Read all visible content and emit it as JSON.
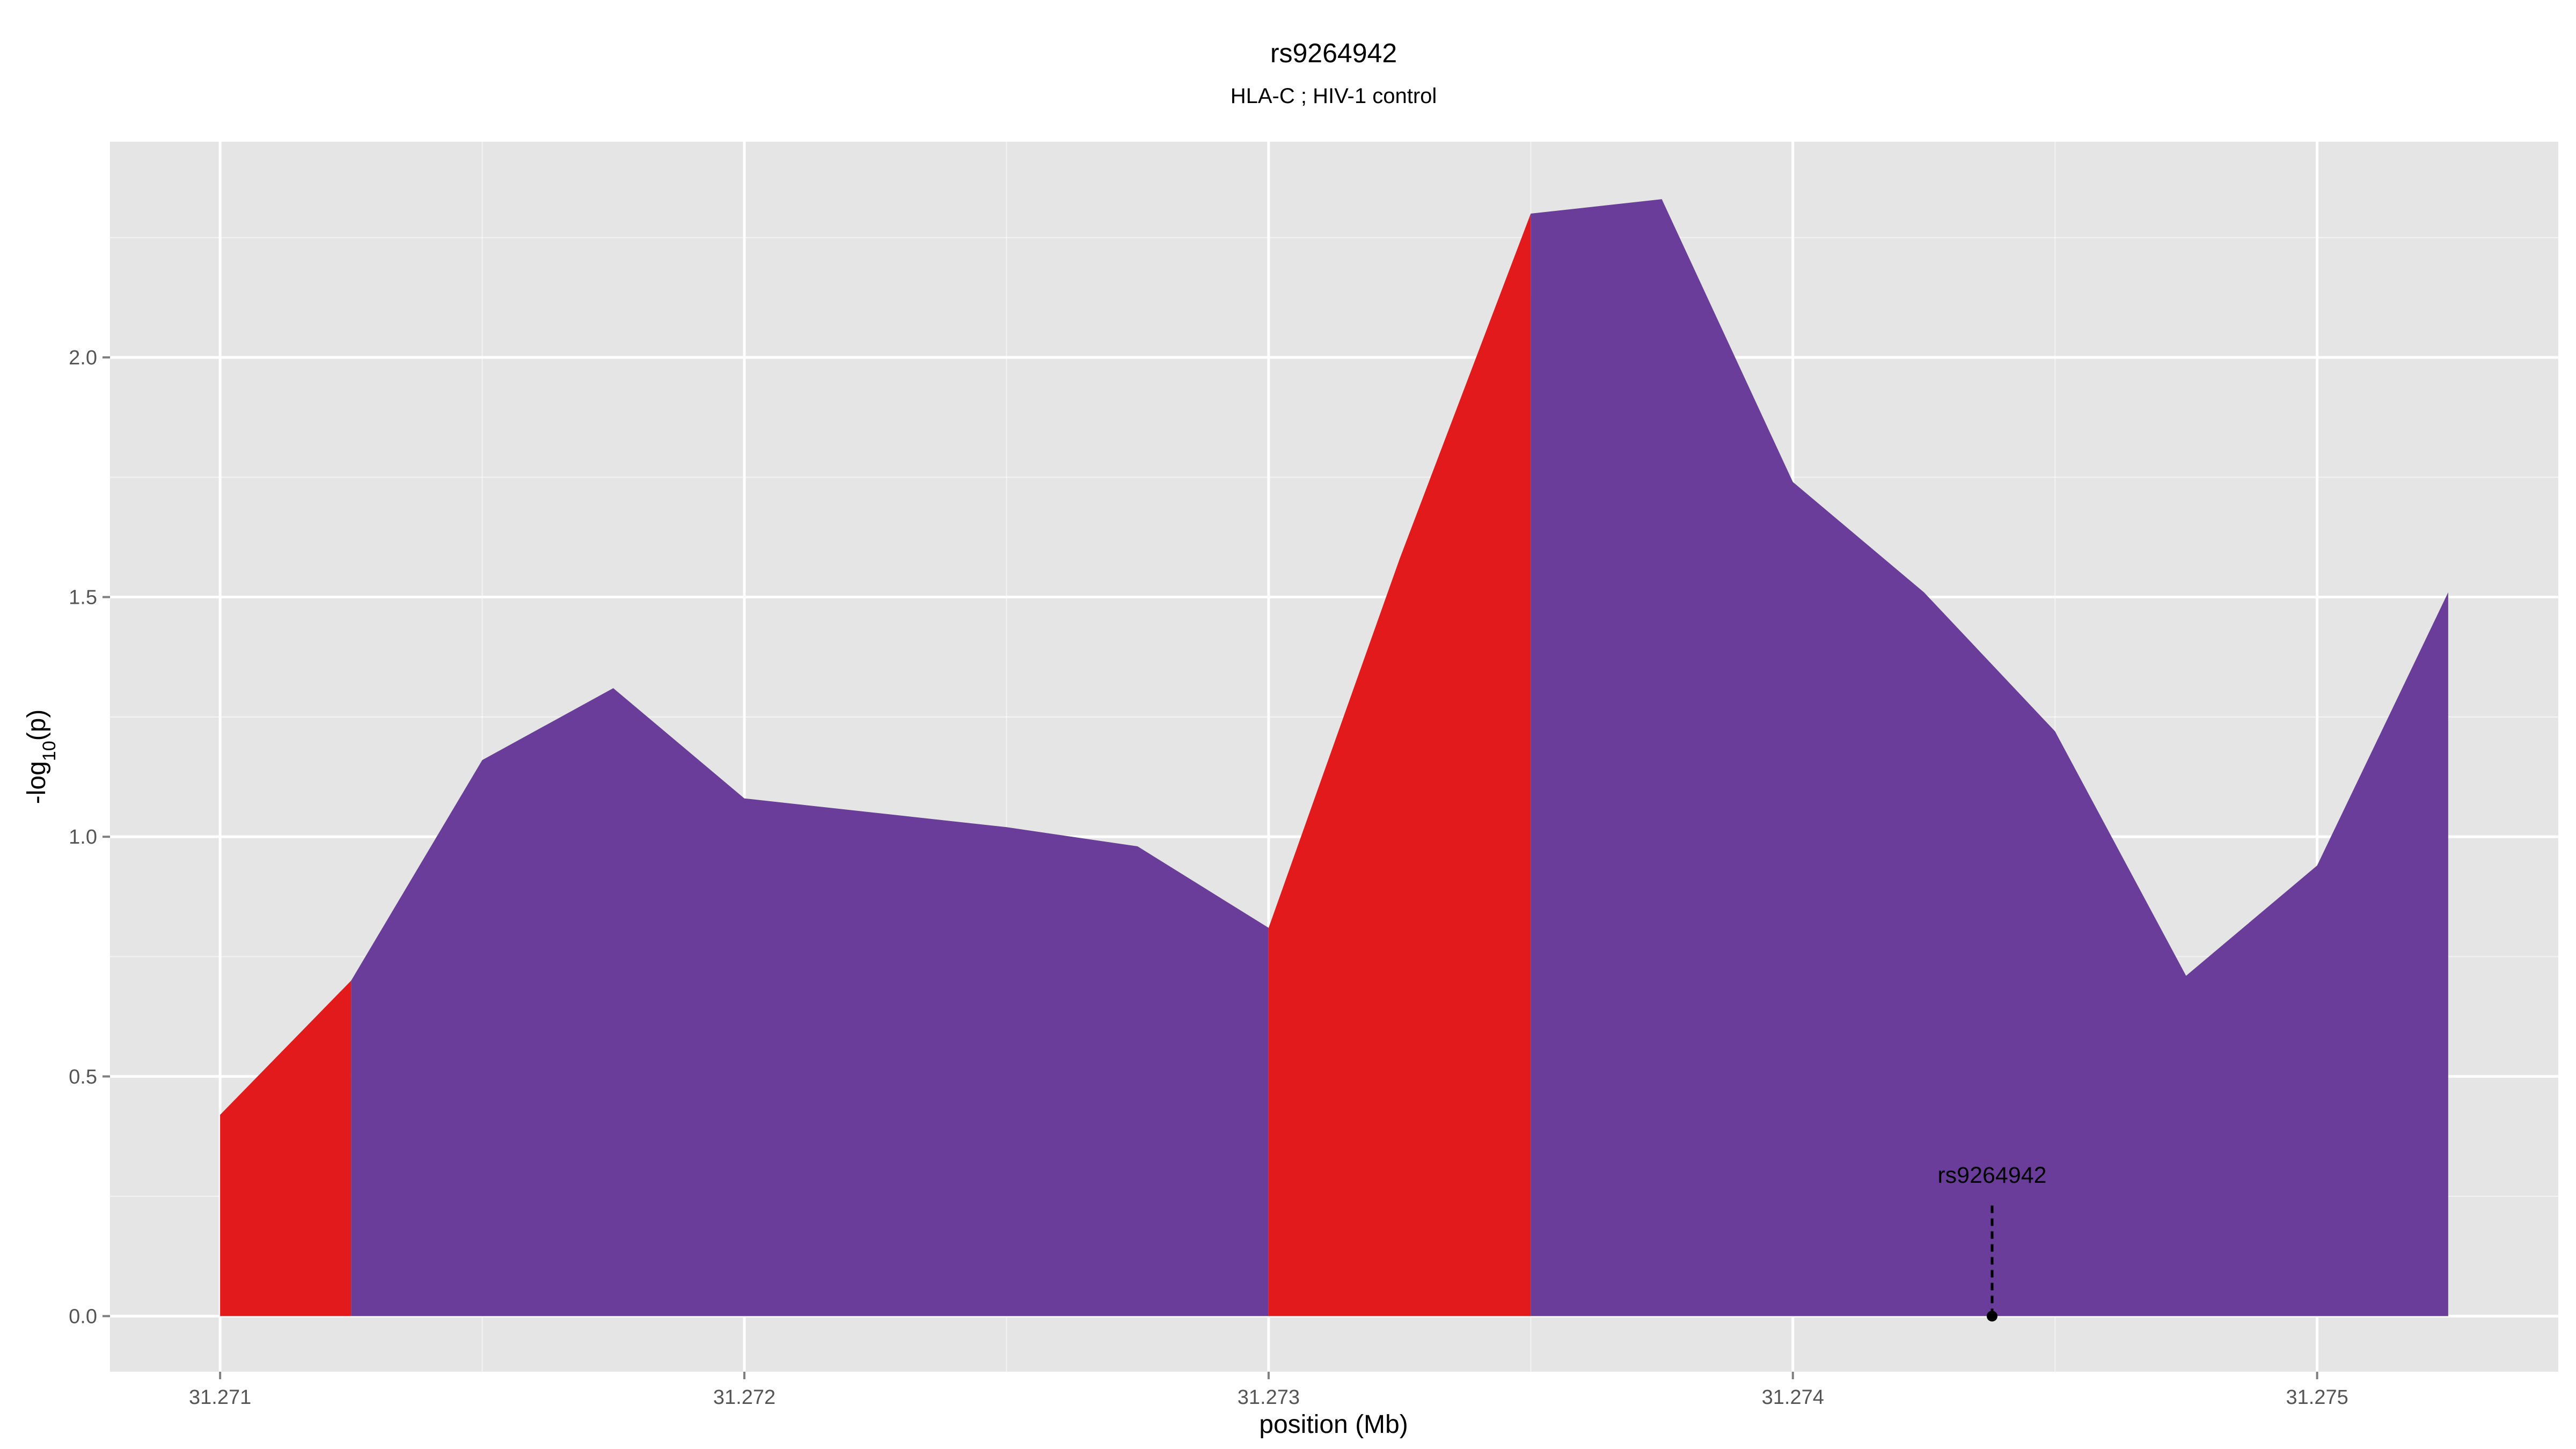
{
  "chart_data": {
    "type": "area",
    "title": "rs9264942",
    "subtitle": "HLA-C ; HIV-1 control",
    "xlabel": "position (Mb)",
    "ylabel_main": "-log",
    "ylabel_sub": "10",
    "ylabel_tail": "(p)",
    "xlim": [
      31.27079,
      31.27546
    ],
    "ylim": [
      -0.116,
      2.45
    ],
    "x_ticks": [
      31.271,
      31.272,
      31.273,
      31.274,
      31.275
    ],
    "x_tick_labels": [
      "31.271",
      "31.272",
      "31.273",
      "31.274",
      "31.275"
    ],
    "y_ticks": [
      0.0,
      0.5,
      1.0,
      1.5,
      2.0
    ],
    "y_tick_labels": [
      "0.0",
      "0.5",
      "1.0",
      "1.5",
      "2.0"
    ],
    "grid": true,
    "background": "#e5e5e5",
    "gridline_color": "#ffffff",
    "series": [
      {
        "color": "#e31a1c",
        "segments": [
          {
            "x": [
              31.271,
              31.27125
            ],
            "y": [
              0.42,
              0.7
            ]
          },
          {
            "x": [
              31.273,
              31.27325,
              31.2735
            ],
            "y": [
              0.81,
              1.58,
              2.3
            ]
          }
        ]
      },
      {
        "color": "#6a3d9a",
        "segments": [
          {
            "x": [
              31.27125,
              31.2715,
              31.27175,
              31.272,
              31.27225,
              31.2725,
              31.27275,
              31.273
            ],
            "y": [
              0.7,
              1.16,
              1.31,
              1.08,
              1.05,
              1.02,
              0.98,
              0.81
            ]
          },
          {
            "x": [
              31.2735,
              31.27375,
              31.274,
              31.27425,
              31.2745,
              31.27475,
              31.275,
              31.27525
            ],
            "y": [
              2.3,
              2.33,
              1.74,
              1.51,
              1.22,
              0.71,
              0.94,
              1.51
            ]
          }
        ]
      }
    ],
    "annotation": {
      "label": "rs9264942",
      "x": 31.27438,
      "y": 0.0,
      "line_to_y": 0.24
    }
  }
}
